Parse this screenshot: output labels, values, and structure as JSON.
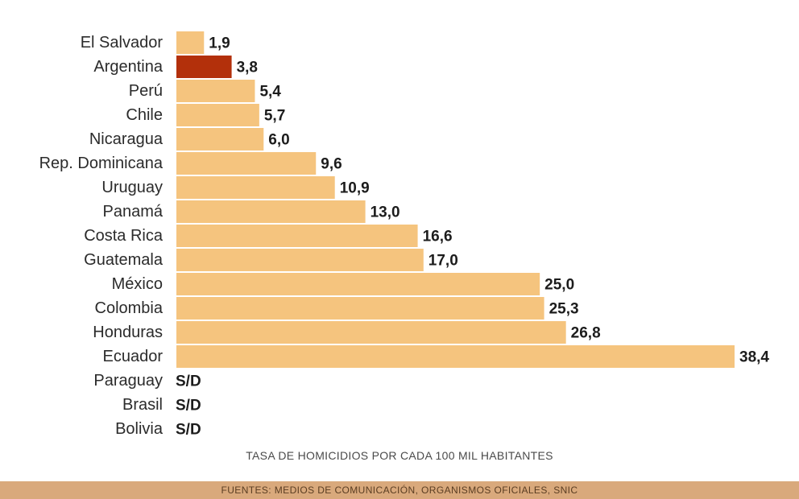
{
  "chart_data": {
    "type": "bar",
    "orientation": "horizontal",
    "categories": [
      "El Salvador",
      "Argentina",
      "Perú",
      "Chile",
      "Nicaragua",
      "Rep. Dominicana",
      "Uruguay",
      "Panamá",
      "Costa Rica",
      "Guatemala",
      "México",
      "Colombia",
      "Honduras",
      "Ecuador",
      "Paraguay",
      "Brasil",
      "Bolivia"
    ],
    "values": [
      1.9,
      3.8,
      5.4,
      5.7,
      6.0,
      9.6,
      10.9,
      13.0,
      16.6,
      17.0,
      25.0,
      25.3,
      26.8,
      38.4,
      null,
      null,
      null
    ],
    "value_labels": [
      "1,9",
      "3,8",
      "5,4",
      "5,7",
      "6,0",
      "9,6",
      "10,9",
      "13,0",
      "16,6",
      "17,0",
      "25,0",
      "25,3",
      "26,8",
      "38,4",
      "S/D",
      "S/D",
      "S/D"
    ],
    "highlight": "Argentina",
    "xlim": [
      0,
      38.4
    ],
    "xlabel": "TASA DE HOMICIDIOS POR CADA 100 MIL HABITANTES",
    "bar_color": "#f5c47e",
    "highlight_color": "#b3300b",
    "grid": false
  },
  "footer": {
    "sources": "FUENTES: MEDIOS DE COMUNICACIÓN, ORGANISMOS OFICIALES, SNIC"
  }
}
